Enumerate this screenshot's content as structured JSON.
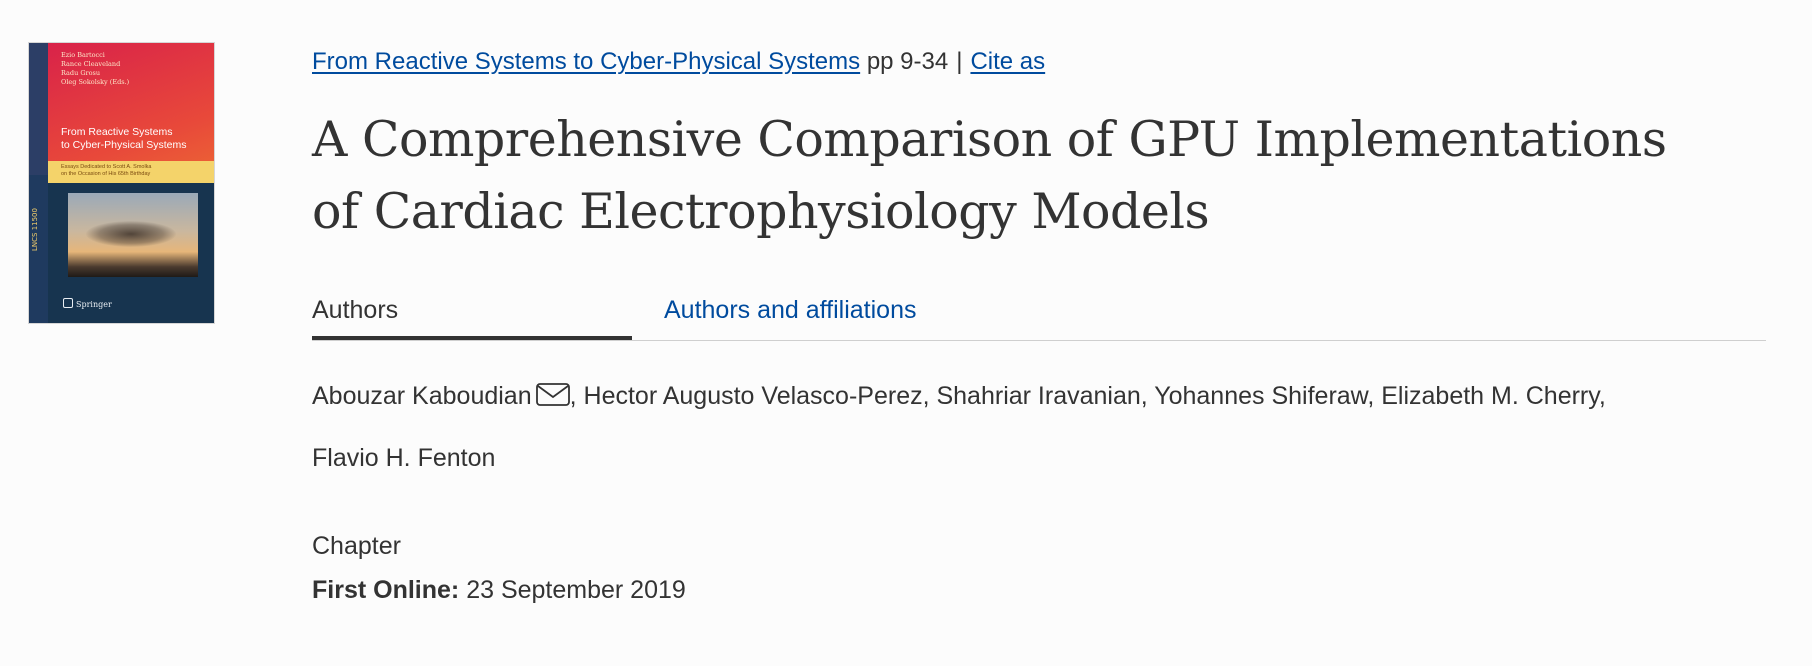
{
  "book": {
    "cover": {
      "editors": [
        "Ezio Bartocci",
        "Rance Cleaveland",
        "Radu Grosu",
        "Oleg Sokolsky (Eds.)"
      ],
      "series_label": "LNCS 11500",
      "title_line1": "From Reactive Systems",
      "title_line2": "to Cyber-Physical Systems",
      "subtitle_line1": "Essays Dedicated to Scott A. Smolka",
      "subtitle_line2": "on the Occasion of His 65th Birthday",
      "publisher": "Springer"
    }
  },
  "breadcrumb": {
    "book_link": "From Reactive Systems to Cyber-Physical Systems",
    "pages": "pp 9-34",
    "separator": "|",
    "cite_link": "Cite as"
  },
  "title": {
    "line1": "A Comprehensive Comparison of GPU Implementations",
    "line2": "of Cardiac Electrophysiology Models"
  },
  "tabs": {
    "authors": "Authors",
    "affiliations": "Authors and affiliations"
  },
  "authors": {
    "first": "Abouzar Kaboudian",
    "rest_line1": ", Hector Augusto Velasco-Perez, Shahriar Iravanian, Yohannes Shiferaw, Elizabeth M. Cherry,",
    "line2": "Flavio H. Fenton"
  },
  "meta": {
    "type": "Chapter",
    "first_online_label": "First Online:",
    "first_online_date": "23 September 2019"
  }
}
